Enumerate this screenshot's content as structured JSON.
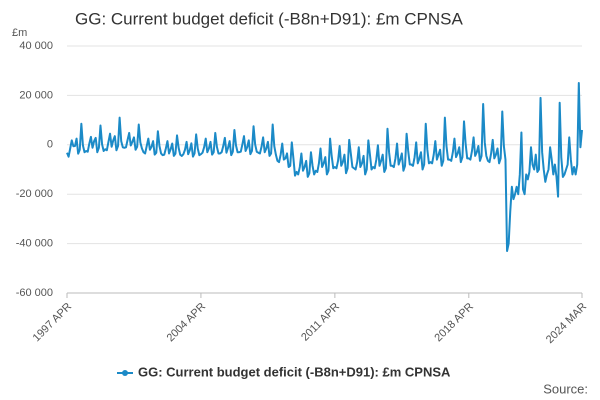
{
  "chart_data": {
    "type": "line",
    "title": "GG: Current budget deficit (-B8n+D91): £m CPNSA",
    "y_label": "£m",
    "source": "Source:",
    "legend": "bottom",
    "grid": true,
    "ylim": [
      -60000,
      40000
    ],
    "yticks": [
      {
        "value": -60000,
        "label": "-60 000"
      },
      {
        "value": -40000,
        "label": "-40 000"
      },
      {
        "value": -20000,
        "label": "-20 000"
      },
      0,
      {
        "value": 20000,
        "label": "20 000"
      },
      {
        "value": 40000,
        "label": "40 000"
      }
    ],
    "categories": [
      "1997 APR",
      null,
      null,
      null,
      null,
      null,
      null,
      null,
      null,
      null,
      null,
      null,
      null,
      null,
      null,
      null,
      null,
      null,
      null,
      null,
      null,
      null,
      null,
      null,
      null,
      null,
      null,
      null,
      null,
      null,
      null,
      null,
      null,
      null,
      null,
      null,
      null,
      null,
      null,
      null,
      null,
      null,
      null,
      null,
      null,
      null,
      null,
      null,
      null,
      null,
      null,
      null,
      null,
      null,
      null,
      null,
      null,
      null,
      null,
      null,
      null,
      null,
      null,
      null,
      null,
      null,
      null,
      null,
      null,
      null,
      null,
      null,
      null,
      null,
      null,
      null,
      null,
      null,
      null,
      null,
      null,
      null,
      null,
      null,
      "2004 APR",
      null,
      null,
      null,
      null,
      null,
      null,
      null,
      null,
      null,
      null,
      null,
      null,
      null,
      null,
      null,
      null,
      null,
      null,
      null,
      null,
      null,
      null,
      null,
      null,
      null,
      null,
      null,
      null,
      null,
      null,
      null,
      null,
      null,
      null,
      null,
      null,
      null,
      null,
      null,
      null,
      null,
      null,
      null,
      null,
      null,
      null,
      null,
      null,
      null,
      null,
      null,
      null,
      null,
      null,
      null,
      null,
      null,
      null,
      null,
      null,
      null,
      null,
      null,
      null,
      null,
      null,
      null,
      null,
      null,
      null,
      null,
      null,
      null,
      null,
      null,
      null,
      null,
      null,
      null,
      null,
      null,
      null,
      null,
      "2011 APR",
      null,
      null,
      null,
      null,
      null,
      null,
      null,
      null,
      null,
      null,
      null,
      null,
      null,
      null,
      null,
      null,
      null,
      null,
      null,
      null,
      null,
      null,
      null,
      null,
      null,
      null,
      null,
      null,
      null,
      null,
      null,
      null,
      null,
      null,
      null,
      null,
      null,
      null,
      null,
      null,
      null,
      null,
      null,
      null,
      null,
      null,
      null,
      null,
      null,
      null,
      null,
      null,
      null,
      null,
      null,
      null,
      null,
      null,
      null,
      null,
      null,
      null,
      null,
      null,
      null,
      null,
      null,
      null,
      null,
      null,
      null,
      null,
      null,
      null,
      null,
      null,
      null,
      null,
      null,
      null,
      null,
      null,
      null,
      "2018 APR",
      null,
      null,
      null,
      null,
      null,
      null,
      null,
      null,
      null,
      null,
      null,
      null,
      null,
      null,
      null,
      null,
      null,
      null,
      null,
      null,
      null,
      null,
      null,
      null,
      null,
      null,
      null,
      null,
      null,
      null,
      null,
      null,
      null,
      null,
      null,
      null,
      null,
      null,
      null,
      null,
      null,
      null,
      null,
      null,
      null,
      null,
      null,
      null,
      null,
      null,
      null,
      null,
      null,
      null,
      null,
      null,
      null,
      null,
      null,
      null,
      null,
      null,
      null,
      null,
      null,
      null,
      null,
      null,
      null,
      null,
      "2024 MAR"
    ],
    "series": [
      {
        "name": "GG: Current budget deficit (-B8n+D91): £m CPNSA",
        "color": "#1b8ac7",
        "values": [
          -3200,
          -4800,
          -1500,
          1800,
          -600,
          -500,
          2500,
          -3600,
          -2000,
          8500,
          -300,
          -3000,
          -2500,
          -2800,
          500,
          3200,
          -1200,
          1500,
          2800,
          -3000,
          -1200,
          7800,
          200,
          -2500,
          -1800,
          -2200,
          1200,
          4500,
          -800,
          1800,
          3500,
          -2200,
          -500,
          11000,
          1500,
          -1000,
          -1200,
          -1000,
          2000,
          4800,
          -300,
          1200,
          3000,
          -2000,
          -800,
          8200,
          1000,
          -1500,
          -3000,
          -3500,
          -500,
          2500,
          -2000,
          -800,
          1500,
          -4000,
          -3200,
          5500,
          -500,
          -3500,
          -4200,
          -4000,
          -1500,
          1500,
          -3500,
          -1800,
          500,
          -4500,
          -3600,
          3800,
          -1200,
          -4000,
          -4500,
          -3800,
          -2000,
          1200,
          -3800,
          -2200,
          600,
          -4800,
          -3500,
          4200,
          -1500,
          -4200,
          -3800,
          -3200,
          -1000,
          2500,
          -3000,
          -1500,
          1200,
          -4000,
          -3000,
          4800,
          -800,
          -3500,
          -3500,
          -3000,
          -500,
          2800,
          -3200,
          -1200,
          1500,
          -4200,
          -2800,
          6000,
          -300,
          -3000,
          -3000,
          -2800,
          200,
          3500,
          -2500,
          -1000,
          1800,
          -3800,
          -2500,
          7500,
          200,
          -2800,
          -3200,
          -3500,
          -800,
          3000,
          -3000,
          -1500,
          1200,
          -4500,
          -3500,
          8200,
          -500,
          -4000,
          -6500,
          -7000,
          -4000,
          500,
          -6000,
          -5500,
          -3500,
          -9000,
          -8500,
          1000,
          -5500,
          -12500,
          -11000,
          -12000,
          -9000,
          -3500,
          -10500,
          -9000,
          -6500,
          -13000,
          -11500,
          -3000,
          -8500,
          -12000,
          -10500,
          -11000,
          -7500,
          -1500,
          -9000,
          -7500,
          -5000,
          -12000,
          -10500,
          2500,
          -4500,
          -9500,
          -9000,
          -9500,
          -6500,
          -500,
          -8500,
          -7000,
          -4000,
          -11500,
          -9500,
          2000,
          -3500,
          -9000,
          -9500,
          -10000,
          -7000,
          -1000,
          -9000,
          -7500,
          -4500,
          -12000,
          -10000,
          1800,
          -4000,
          -10000,
          -9000,
          -9500,
          -6000,
          -200,
          -8500,
          -6500,
          -4000,
          -11000,
          -9500,
          6500,
          -3000,
          -8500,
          -8500,
          -9000,
          -5500,
          500,
          -8000,
          -6000,
          -3500,
          -10500,
          -8500,
          4500,
          -2500,
          -8000,
          -8000,
          -8500,
          -5000,
          1000,
          -7500,
          -5500,
          -3000,
          -10000,
          -8000,
          8500,
          -2000,
          -7500,
          -7000,
          -7500,
          -4000,
          1500,
          -6000,
          -4000,
          -2000,
          -8500,
          -6500,
          11000,
          -500,
          -6000,
          -6000,
          -6500,
          -3000,
          2500,
          -5000,
          -3500,
          -1000,
          -7000,
          -5000,
          9500,
          500,
          -5500,
          -5500,
          -6000,
          -2500,
          3000,
          -4500,
          -3000,
          -500,
          -6500,
          -4500,
          16500,
          1000,
          -4500,
          -6500,
          -7000,
          -3500,
          2000,
          -5500,
          -4000,
          -1500,
          -7500,
          -5500,
          13500,
          -500,
          -6000,
          -43000,
          -40000,
          -27000,
          -17000,
          -22000,
          -20000,
          -17000,
          -20000,
          -12000,
          5000,
          -18000,
          -20000,
          -12000,
          -14000,
          -11000,
          -1000,
          -8000,
          -10000,
          -4000,
          -11000,
          -10000,
          19000,
          -3000,
          -10000,
          -15000,
          -12000,
          -10000,
          -1000,
          -6000,
          -12000,
          -8000,
          -13000,
          -21000,
          17000,
          -5000,
          -13000,
          -12000,
          -10000,
          -8000,
          3000,
          -6000,
          -12000,
          -9000,
          -12000,
          -8000,
          25000,
          -1000,
          6000
        ]
      }
    ]
  }
}
